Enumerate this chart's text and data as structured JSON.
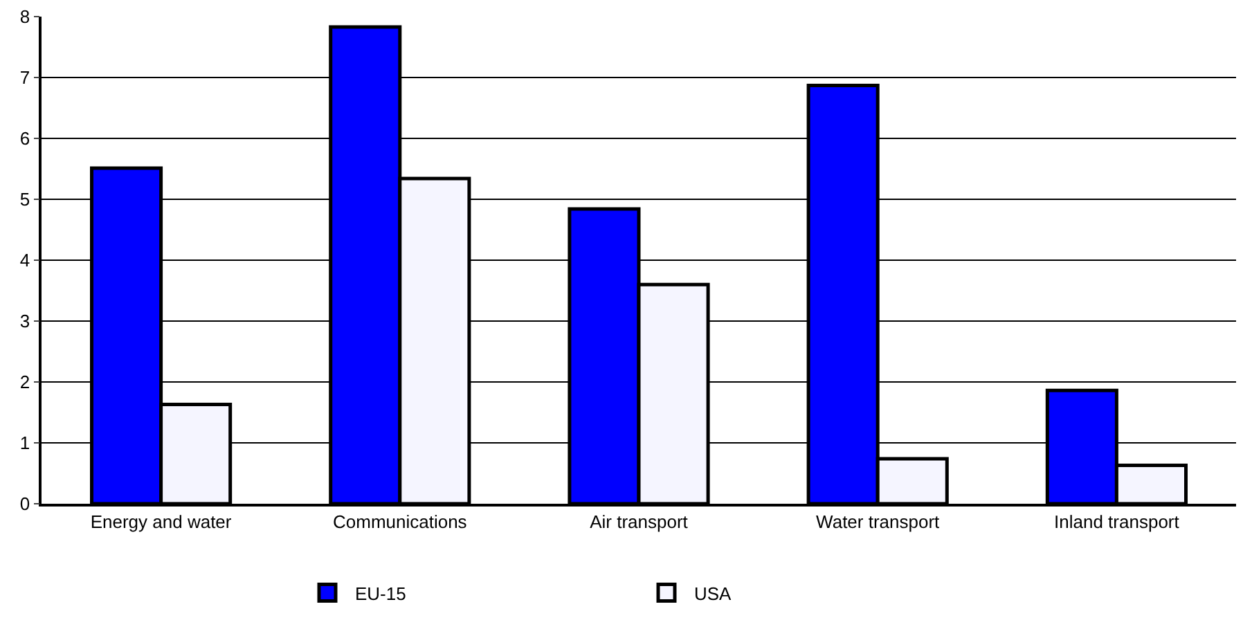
{
  "chart_data": {
    "type": "bar",
    "categories": [
      "Energy and water",
      "Communications",
      "Air transport",
      "Water transport",
      "Inland transport"
    ],
    "series": [
      {
        "name": "EU-15",
        "color": "#0000ff",
        "values": [
          5.51,
          7.83,
          4.84,
          6.87,
          1.86
        ]
      },
      {
        "name": "USA",
        "color": "#f5f5ff",
        "values": [
          1.63,
          5.34,
          3.6,
          0.74,
          0.63
        ]
      }
    ],
    "ylim": [
      0,
      8
    ],
    "yticks": [
      0,
      1,
      2,
      3,
      4,
      5,
      6,
      7,
      8
    ],
    "grid": "y",
    "legend": "bottom"
  }
}
